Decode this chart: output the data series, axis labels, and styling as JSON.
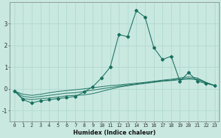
{
  "xlabel": "Humidex (Indice chaleur)",
  "background_color": "#c8e8e0",
  "grid_color": "#b0d8d0",
  "line_color": "#1a7060",
  "x_values": [
    0,
    1,
    2,
    3,
    4,
    5,
    6,
    7,
    8,
    9,
    10,
    11,
    12,
    13,
    14,
    15,
    16,
    17,
    18,
    19,
    20,
    21,
    22,
    23
  ],
  "line_main": [
    -0.1,
    -0.5,
    -0.65,
    -0.55,
    -0.5,
    -0.45,
    -0.4,
    -0.35,
    -0.15,
    0.1,
    0.5,
    1.0,
    2.5,
    2.4,
    3.6,
    3.3,
    1.9,
    1.35,
    1.5,
    0.35,
    0.75,
    0.35,
    0.25,
    0.15
  ],
  "line2": [
    -0.1,
    -0.45,
    -0.5,
    -0.45,
    -0.42,
    -0.38,
    -0.32,
    -0.3,
    -0.28,
    -0.22,
    -0.12,
    -0.02,
    0.08,
    0.14,
    0.2,
    0.25,
    0.3,
    0.35,
    0.38,
    0.42,
    0.45,
    0.43,
    0.28,
    0.15
  ],
  "line3": [
    -0.1,
    -0.35,
    -0.4,
    -0.35,
    -0.3,
    -0.25,
    -0.2,
    -0.18,
    -0.12,
    -0.06,
    0.0,
    0.06,
    0.12,
    0.18,
    0.22,
    0.27,
    0.32,
    0.37,
    0.4,
    0.45,
    0.48,
    0.45,
    0.28,
    0.15
  ],
  "line4": [
    -0.1,
    -0.25,
    -0.3,
    -0.25,
    -0.18,
    -0.12,
    -0.08,
    -0.04,
    0.0,
    0.05,
    0.1,
    0.15,
    0.18,
    0.22,
    0.26,
    0.3,
    0.35,
    0.4,
    0.44,
    0.5,
    0.55,
    0.5,
    0.3,
    0.15
  ],
  "ylim": [
    -1.5,
    4.0
  ],
  "yticks": [
    -1,
    0,
    1,
    2,
    3
  ],
  "xticks": [
    0,
    1,
    2,
    3,
    4,
    5,
    6,
    7,
    8,
    9,
    10,
    11,
    12,
    13,
    14,
    15,
    16,
    17,
    18,
    19,
    20,
    21,
    22,
    23
  ],
  "figwidth": 3.2,
  "figheight": 2.0,
  "dpi": 100
}
